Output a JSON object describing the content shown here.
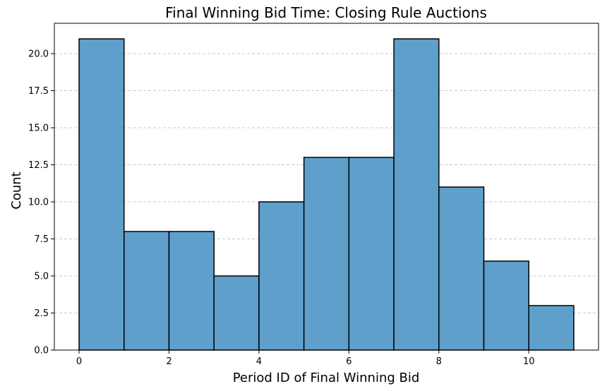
{
  "chart_data": {
    "type": "bar",
    "subtype": "histogram",
    "title": "Final Winning Bid Time: Closing Rule Auctions",
    "xlabel": "Period ID of Final Winning Bid",
    "ylabel": "Count",
    "bins": [
      {
        "start": 0,
        "end": 1,
        "count": 21
      },
      {
        "start": 1,
        "end": 2,
        "count": 8
      },
      {
        "start": 2,
        "end": 3,
        "count": 8
      },
      {
        "start": 3,
        "end": 4,
        "count": 5
      },
      {
        "start": 4,
        "end": 5,
        "count": 10
      },
      {
        "start": 5,
        "end": 6,
        "count": 13
      },
      {
        "start": 6,
        "end": 7,
        "count": 13
      },
      {
        "start": 7,
        "end": 8,
        "count": 21
      },
      {
        "start": 8,
        "end": 9,
        "count": 11
      },
      {
        "start": 9,
        "end": 10,
        "count": 6
      },
      {
        "start": 10,
        "end": 11,
        "count": 3
      }
    ],
    "xlim": [
      -0.55,
      11.55
    ],
    "ylim": [
      0,
      22.05
    ],
    "xticks": [
      0,
      2,
      4,
      6,
      8,
      10
    ],
    "xtick_labels": [
      "0",
      "2",
      "4",
      "6",
      "8",
      "10"
    ],
    "yticks": [
      0,
      2.5,
      5,
      7.5,
      10,
      12.5,
      15,
      17.5,
      20
    ],
    "ytick_labels": [
      "0.0",
      "2.5",
      "5.0",
      "7.5",
      "10.0",
      "12.5",
      "15.0",
      "17.5",
      "20.0"
    ],
    "grid": {
      "y": true,
      "x": false,
      "style": "dashed"
    },
    "colors": {
      "bar_fill": "#5f9fcb",
      "bar_edge": "#000000",
      "grid": "#c8c8c8"
    }
  }
}
